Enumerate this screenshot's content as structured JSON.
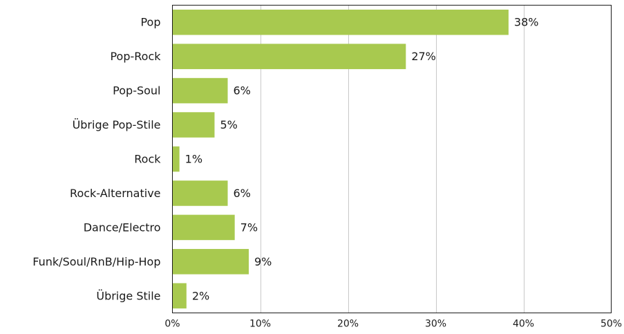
{
  "chart_data": {
    "type": "bar",
    "orientation": "horizontal",
    "categories": [
      "Pop",
      "Pop-Rock",
      "Pop-Soul",
      "Übrige Pop-Stile",
      "Rock",
      "Rock-Alternative",
      "Dance/Electro",
      "Funk/Soul/RnB/Hip-Hop",
      "Übrige Stile"
    ],
    "values": [
      38.3,
      26.6,
      6.3,
      4.8,
      0.8,
      6.3,
      7.1,
      8.7,
      1.6
    ],
    "value_labels": [
      "38%",
      "27%",
      "6%",
      "5%",
      "1%",
      "6%",
      "7%",
      "9%",
      "2%"
    ],
    "title": "",
    "xlabel": "",
    "ylabel": "",
    "xlim": [
      0,
      50
    ],
    "x_ticks": [
      0,
      10,
      20,
      30,
      40,
      50
    ],
    "x_tick_labels": [
      "0%",
      "10%",
      "20%",
      "30%",
      "40%",
      "50%"
    ],
    "grid": "vertical",
    "legend": "none",
    "colors": {
      "bar": "#a8c94f",
      "grid": "#c8c8c8",
      "axis": "#1a1a1a",
      "text": "#1a1a1a"
    }
  }
}
